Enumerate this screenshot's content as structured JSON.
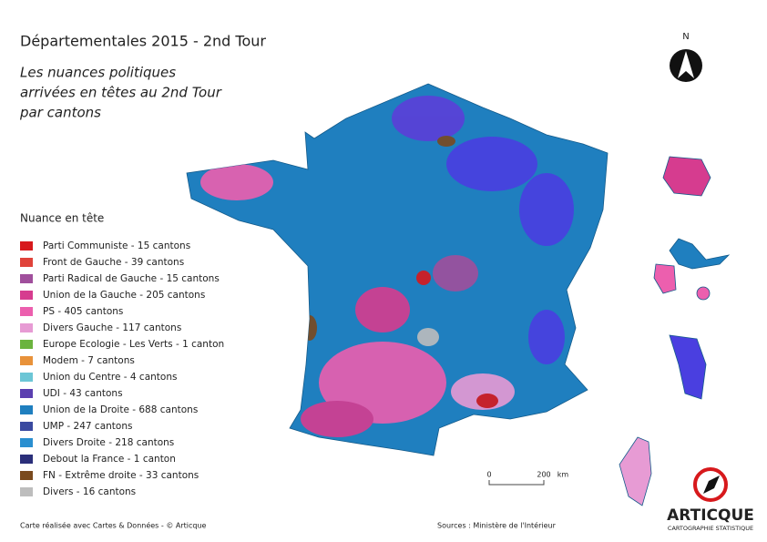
{
  "header": {
    "title": "Départementales 2015 - 2nd Tour",
    "subtitle": [
      "Les nuances politiques",
      "arrivées en têtes au 2nd Tour",
      "par cantons"
    ]
  },
  "legend": {
    "title": "Nuance en tête",
    "items": [
      {
        "label": "Parti Communiste - 15 cantons",
        "color": "#d7191c"
      },
      {
        "label": "Front de Gauche - 39 cantons",
        "color": "#e0433a"
      },
      {
        "label": "Parti Radical de Gauche - 15 cantons",
        "color": "#a04f9c"
      },
      {
        "label": "Union de la Gauche - 205 cantons",
        "color": "#d63c8f"
      },
      {
        "label": "PS - 405 cantons",
        "color": "#ec5fae"
      },
      {
        "label": "Divers Gauche - 117 cantons",
        "color": "#e79bd4"
      },
      {
        "label": "Europe Ecologie - Les Verts - 1 canton",
        "color": "#6bb43f"
      },
      {
        "label": "Modem - 7 cantons",
        "color": "#e8923a"
      },
      {
        "label": "Union du Centre - 4 cantons",
        "color": "#6cc6d6"
      },
      {
        "label": "UDI - 43 cantons",
        "color": "#5b3fb0"
      },
      {
        "label": "Union de la Droite - 688 cantons",
        "color": "#1f7fbf"
      },
      {
        "label": "UMP - 247 cantons",
        "color": "#3a4aa0"
      },
      {
        "label": "Divers Droite - 218 cantons",
        "color": "#2a8fd0"
      },
      {
        "label": "Debout la France - 1 canton",
        "color": "#2b2f7a"
      },
      {
        "label": "FN - Extrême droite - 33 cantons",
        "color": "#7a4a1e"
      },
      {
        "label": "Divers - 16 cantons",
        "color": "#bdbdbd"
      }
    ]
  },
  "scale": {
    "start": "0",
    "end": "200",
    "unit": "km"
  },
  "north": "N",
  "logo": {
    "name": "ARTICQUE",
    "tagline": "CARTOGRAPHIE STATISTIQUE"
  },
  "footer": {
    "left": "Carte réalisée avec Cartes & Données - © Articque",
    "right": "Sources : Ministère de l'Intérieur"
  }
}
